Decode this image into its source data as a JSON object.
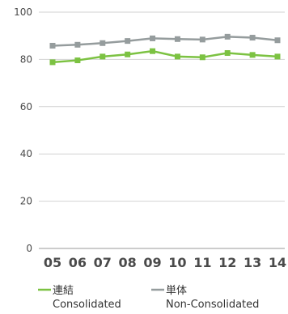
{
  "chart_data": {
    "type": "line",
    "title": "",
    "xlabel": "",
    "ylabel": "",
    "categories": [
      "05",
      "06",
      "07",
      "08",
      "09",
      "10",
      "11",
      "12",
      "13",
      "14"
    ],
    "ylim": [
      0,
      100
    ],
    "yticks": [
      "0",
      "20",
      "40",
      "60",
      "80",
      "100"
    ],
    "grid": true,
    "legend_position": "bottom",
    "series": [
      {
        "name": "連結",
        "name_en": "Consolidated",
        "color": "#7cc242",
        "marker": "square",
        "values": [
          78.8,
          79.6,
          81.2,
          82.1,
          83.5,
          81.2,
          80.9,
          82.7,
          81.9,
          81.2
        ]
      },
      {
        "name": "単体",
        "name_en": "Non-Consolidated",
        "color": "#959c9d",
        "marker": "square",
        "values": [
          85.8,
          86.2,
          86.9,
          87.8,
          88.9,
          88.6,
          88.4,
          89.6,
          89.2,
          88.1
        ]
      }
    ]
  }
}
